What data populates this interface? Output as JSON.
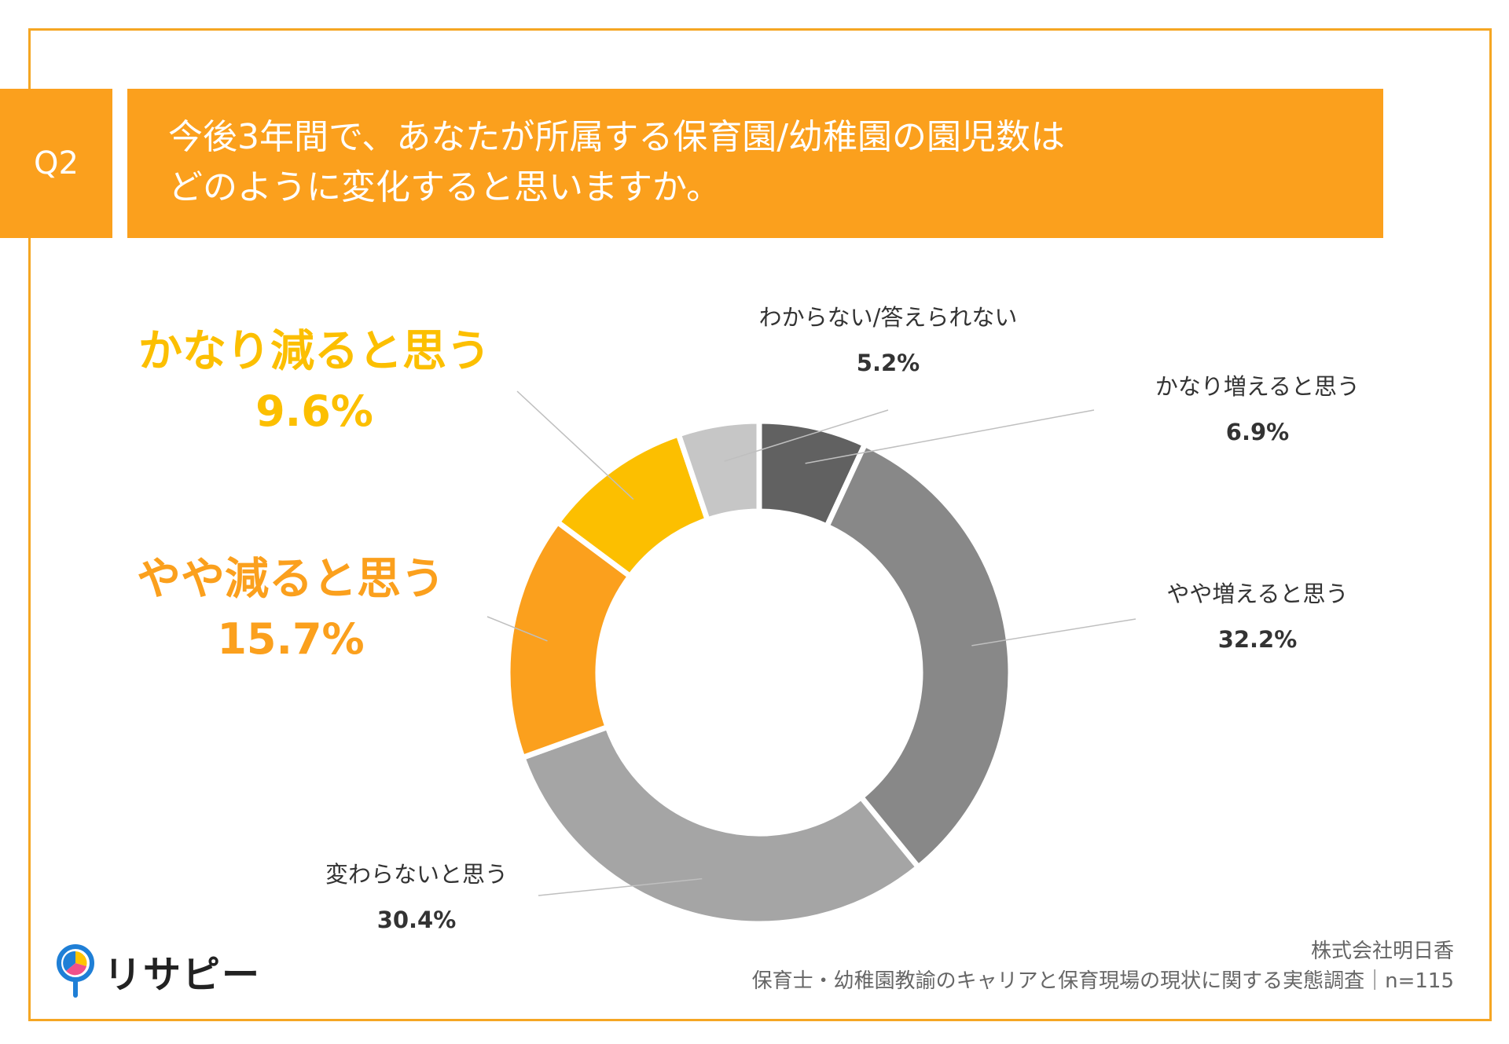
{
  "header": {
    "badge": "Q2",
    "title_line1": "今後3年間で、あなたが所属する保育園/幼稚園の園児数は",
    "title_line2": "どのように変化すると思いますか。"
  },
  "colors": {
    "accent": "#fba01d",
    "frame": "#f5a623",
    "highlight_yellow": "#fcbf00"
  },
  "chart_data": {
    "type": "pie",
    "donut": true,
    "unit": "%",
    "slices": [
      {
        "label": "かなり増えると思う",
        "value": 6.9,
        "display": "6.9%",
        "color": "#616161"
      },
      {
        "label": "やや増えると思う",
        "value": 32.2,
        "display": "32.2%",
        "color": "#888888"
      },
      {
        "label": "変わらないと思う",
        "value": 30.4,
        "display": "30.4%",
        "color": "#a5a5a5"
      },
      {
        "label": "やや減ると思う",
        "value": 15.7,
        "display": "15.7%",
        "color": "#fba01d"
      },
      {
        "label": "かなり減ると思う",
        "value": 9.6,
        "display": "9.6%",
        "color": "#fcbf00"
      },
      {
        "label": "わからない/答えられない",
        "value": 5.2,
        "display": "5.2%",
        "color": "#c6c6c6"
      }
    ]
  },
  "footer": {
    "company": "株式会社明日香",
    "survey": "保育士・幼稚園教諭のキャリアと保育現場の現状に関する実態調査｜n=115"
  },
  "logo": {
    "text": "リサピー",
    "icon": "magnifier-pie-icon"
  }
}
